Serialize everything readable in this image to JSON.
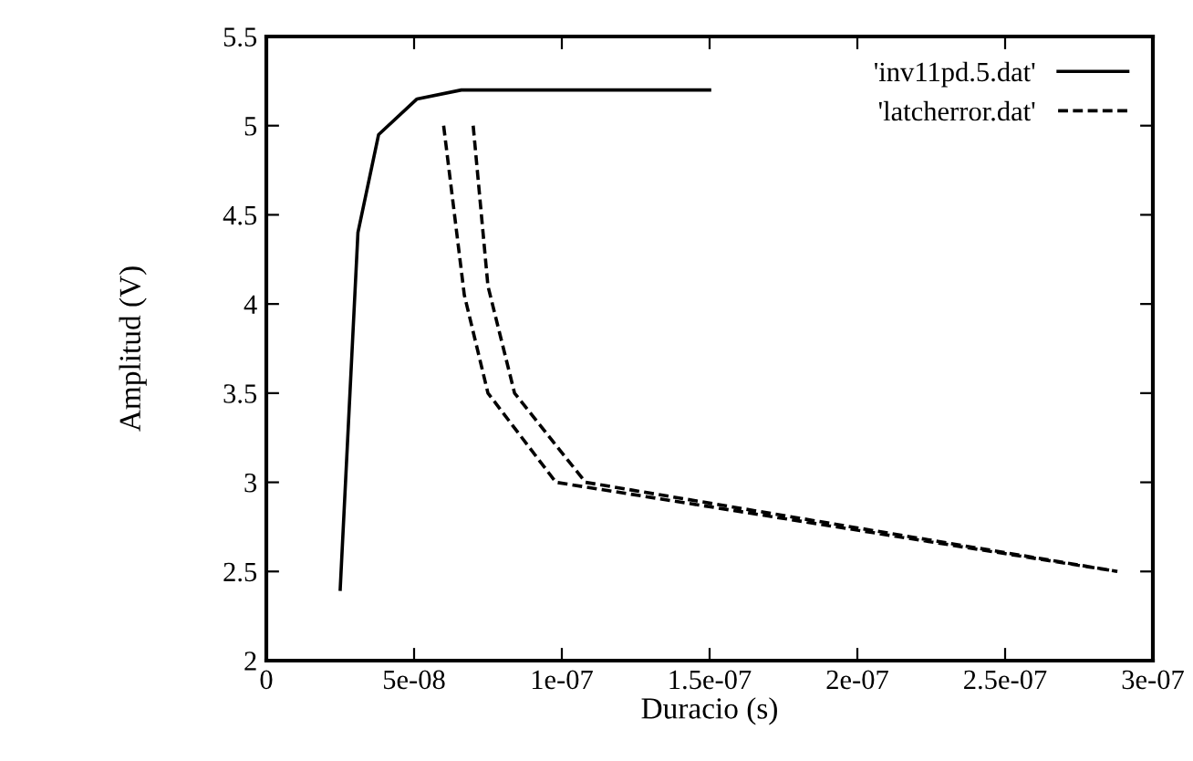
{
  "chart_data": {
    "type": "line",
    "xlabel": "Duracio (s)",
    "ylabel": "Amplitud (V)",
    "xlim": [
      0,
      3e-07
    ],
    "ylim": [
      2,
      5.5
    ],
    "xticks": [
      0,
      {
        "value": 5e-08,
        "label": "5e-08"
      },
      {
        "value": 1e-07,
        "label": "1e-07"
      },
      {
        "value": 1.5e-07,
        "label": "1.5e-07"
      },
      {
        "value": 2e-07,
        "label": "2e-07"
      },
      {
        "value": 2.5e-07,
        "label": "2.5e-07"
      },
      {
        "value": 3e-07,
        "label": "3e-07"
      }
    ],
    "yticks": [
      2,
      2.5,
      3,
      3.5,
      4,
      4.5,
      5,
      5.5
    ],
    "grid": false,
    "legend": "top right",
    "series": [
      {
        "name": "'inv11pd.5.dat'",
        "color": "#000000",
        "line_style": "solid",
        "x": [
          2.5e-08,
          3.1e-08,
          3.8e-08,
          5.1e-08,
          6.6e-08,
          1e-07,
          1.5e-07
        ],
        "values": [
          2.4,
          4.4,
          4.95,
          5.15,
          5.2,
          5.2,
          5.2
        ]
      },
      {
        "name": "'latcherror.dat'",
        "color": "#000000",
        "line_style": "dashed",
        "x": [
          6e-08,
          6.7e-08,
          7.5e-08,
          9.8e-08,
          2.88e-07,
          null,
          7e-08,
          7.5e-08,
          8.4e-08,
          1.08e-07,
          2.88e-07
        ],
        "values": [
          5.0,
          4.05,
          3.5,
          3.0,
          2.5,
          null,
          5.0,
          4.1,
          3.5,
          3.0,
          2.5
        ]
      }
    ]
  }
}
